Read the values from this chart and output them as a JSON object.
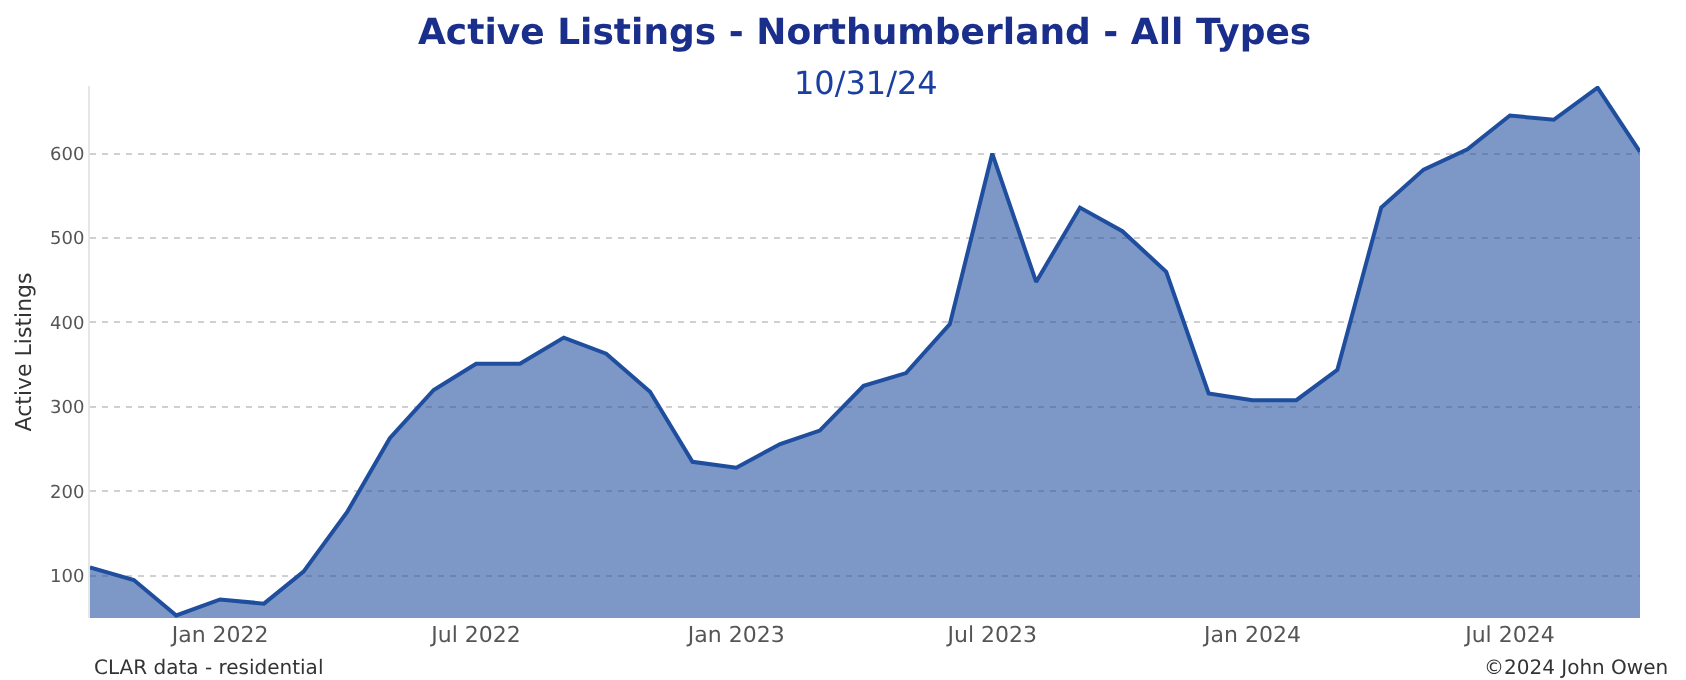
{
  "chart_data": {
    "type": "area",
    "title": "Active Listings - Northumberland - All Types",
    "subtitle": "10/31/24",
    "ylabel": "Active Listings",
    "x": [
      "2021-10",
      "2021-11",
      "2021-12",
      "2022-01",
      "2022-02",
      "2022-03",
      "2022-04",
      "2022-05",
      "2022-06",
      "2022-07",
      "2022-08",
      "2022-09",
      "2022-10",
      "2022-11",
      "2022-12",
      "2023-01",
      "2023-02",
      "2023-03",
      "2023-04",
      "2023-05",
      "2023-06",
      "2023-07",
      "2023-08",
      "2023-09",
      "2023-10",
      "2023-11",
      "2023-12",
      "2024-01",
      "2024-02",
      "2024-03",
      "2024-04",
      "2024-05",
      "2024-06",
      "2024-07",
      "2024-08",
      "2024-09",
      "2024-10"
    ],
    "series": [
      {
        "color": "#1f4e9f",
        "values": [
          110,
          95,
          53,
          72,
          67,
          105,
          176,
          263,
          320,
          351,
          351,
          382,
          363,
          318,
          235,
          228,
          256,
          272,
          325,
          340,
          398,
          600,
          448,
          536,
          508,
          460,
          316,
          308,
          308,
          344,
          536,
          581,
          605,
          645,
          640,
          678,
          602
        ]
      }
    ],
    "xlim": [
      "2021-10",
      "2024-10"
    ],
    "xticks": [
      {
        "value": "2022-01",
        "label": "Jan 2022"
      },
      {
        "value": "2022-07",
        "label": "Jul 2022"
      },
      {
        "value": "2023-01",
        "label": "Jan 2023"
      },
      {
        "value": "2023-07",
        "label": "Jul 2023"
      },
      {
        "value": "2024-01",
        "label": "Jan 2024"
      },
      {
        "value": "2024-07",
        "label": "Jul 2024"
      }
    ],
    "ylim": [
      50,
      680
    ],
    "yticks": [
      100,
      200,
      300,
      400,
      500,
      600
    ],
    "grid": "y",
    "marker": "none",
    "line_style": "solid",
    "annotations": [
      "CLAR data - residential",
      "©2024 John Owen"
    ]
  }
}
